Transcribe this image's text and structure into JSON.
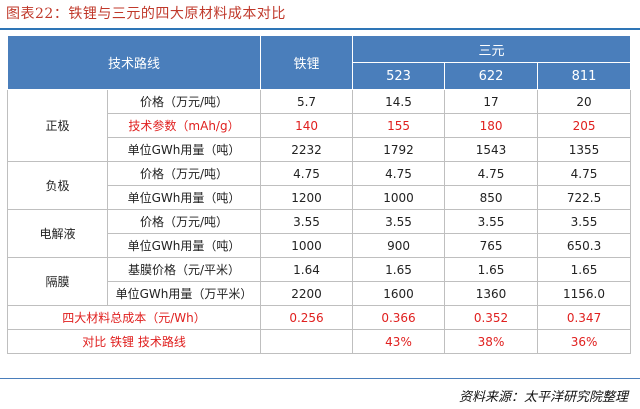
{
  "title": "图表22：铁锂与三元的四大原材料成本对比",
  "header": {
    "route": "技术路线",
    "lfp": "铁锂",
    "ternary": "三元",
    "n523": "523",
    "n622": "622",
    "n811": "811"
  },
  "groups": [
    {
      "name": "正极",
      "rows": [
        {
          "label": "价格（万元/吨）",
          "values": [
            "5.7",
            "14.5",
            "17",
            "20"
          ],
          "highlight": false
        },
        {
          "label": "技术参数（mAh/g）",
          "values": [
            "140",
            "155",
            "180",
            "205"
          ],
          "highlight": true
        },
        {
          "label": "单位GWh用量（吨）",
          "values": [
            "2232",
            "1792",
            "1543",
            "1355"
          ],
          "highlight": false
        }
      ]
    },
    {
      "name": "负极",
      "rows": [
        {
          "label": "价格（万元/吨）",
          "values": [
            "4.75",
            "4.75",
            "4.75",
            "4.75"
          ],
          "highlight": false
        },
        {
          "label": "单位GWh用量（吨）",
          "values": [
            "1200",
            "1000",
            "850",
            "722.5"
          ],
          "highlight": false
        }
      ]
    },
    {
      "name": "电解液",
      "rows": [
        {
          "label": "价格（万元/吨）",
          "values": [
            "3.55",
            "3.55",
            "3.55",
            "3.55"
          ],
          "highlight": false
        },
        {
          "label": "单位GWh用量（吨）",
          "values": [
            "1000",
            "900",
            "765",
            "650.3"
          ],
          "highlight": false
        }
      ]
    },
    {
      "name": "隔膜",
      "rows": [
        {
          "label": "基膜价格（元/平米）",
          "values": [
            "1.64",
            "1.65",
            "1.65",
            "1.65"
          ],
          "highlight": false
        },
        {
          "label": "单位GWh用量（万平米）",
          "values": [
            "2200",
            "1600",
            "1360",
            "1156.0"
          ],
          "highlight": false
        }
      ]
    }
  ],
  "summary": [
    {
      "label": "四大材料总成本（元/Wh）",
      "values": [
        "0.256",
        "0.366",
        "0.352",
        "0.347"
      ]
    },
    {
      "label": "对比 铁锂 技术路线",
      "values": [
        "",
        "43%",
        "38%",
        "36%"
      ]
    }
  ],
  "source": "资料来源：太平洋研究院整理",
  "colors": {
    "header_bg": "#4a7ebb",
    "highlight_text": "#e0201f",
    "title_text": "#c0392b",
    "rule": "#2e75b6"
  }
}
